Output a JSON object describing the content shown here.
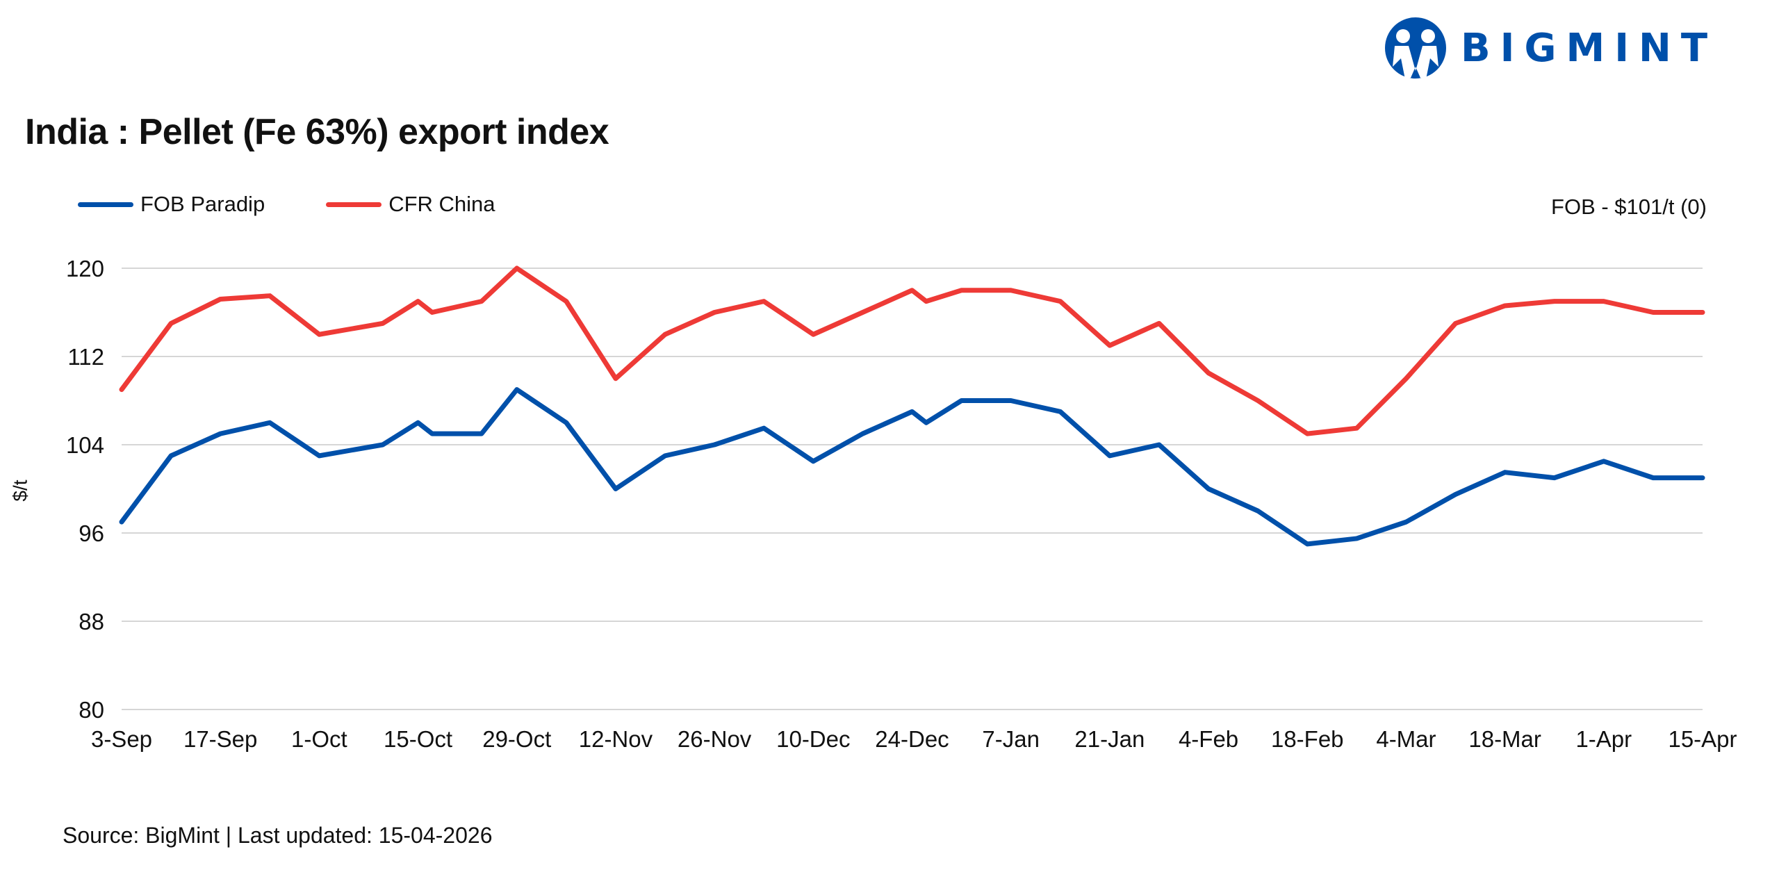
{
  "logo": {
    "text": "BIGMINT",
    "color": "#0050aa"
  },
  "fob_note": "FOB - $101/t (0)",
  "source": "Source: BigMint | Last updated: 15-04-2026",
  "chart_data": {
    "type": "line",
    "title": "India : Pellet (Fe 63%) export index",
    "ylabel": "$/t",
    "xlabel": "",
    "ylim": [
      80,
      120
    ],
    "yticks": [
      80,
      88,
      96,
      104,
      112,
      120
    ],
    "grid": true,
    "legend": "top-left",
    "xticks": [
      {
        "date": "2025-09-03",
        "label": "3-Sep"
      },
      {
        "date": "2025-09-17",
        "label": "17-Sep"
      },
      {
        "date": "2025-10-01",
        "label": "1-Oct"
      },
      {
        "date": "2025-10-15",
        "label": "15-Oct"
      },
      {
        "date": "2025-10-29",
        "label": "29-Oct"
      },
      {
        "date": "2025-11-12",
        "label": "12-Nov"
      },
      {
        "date": "2025-11-26",
        "label": "26-Nov"
      },
      {
        "date": "2025-12-10",
        "label": "10-Dec"
      },
      {
        "date": "2025-12-24",
        "label": "24-Dec"
      },
      {
        "date": "2026-01-07",
        "label": "7-Jan"
      },
      {
        "date": "2026-01-21",
        "label": "21-Jan"
      },
      {
        "date": "2026-02-04",
        "label": "4-Feb"
      },
      {
        "date": "2026-02-18",
        "label": "18-Feb"
      },
      {
        "date": "2026-03-04",
        "label": "4-Mar"
      },
      {
        "date": "2026-03-18",
        "label": "18-Mar"
      },
      {
        "date": "2026-04-01",
        "label": "1-Apr"
      },
      {
        "date": "2026-04-15",
        "label": "15-Apr"
      }
    ],
    "x": [
      "2025-09-03",
      "2025-09-10",
      "2025-09-17",
      "2025-09-24",
      "2025-10-01",
      "2025-10-10",
      "2025-10-15",
      "2025-10-17",
      "2025-10-24",
      "2025-10-29",
      "2025-11-05",
      "2025-11-12",
      "2025-11-19",
      "2025-11-26",
      "2025-12-03",
      "2025-12-10",
      "2025-12-17",
      "2025-12-24",
      "2025-12-26",
      "2025-12-31",
      "2026-01-07",
      "2026-01-14",
      "2026-01-21",
      "2026-01-28",
      "2026-02-04",
      "2026-02-11",
      "2026-02-18",
      "2026-02-25",
      "2026-03-04",
      "2026-03-11",
      "2026-03-18",
      "2026-03-25",
      "2026-04-01",
      "2026-04-08",
      "2026-04-15"
    ],
    "series": [
      {
        "name": "FOB Paradip",
        "color": "#0050aa",
        "values": [
          97,
          103,
          105,
          106,
          103,
          104,
          106,
          105,
          105,
          109,
          106,
          100,
          103,
          104,
          105.5,
          102.5,
          105,
          107,
          106,
          108,
          108,
          107,
          103,
          104,
          100,
          98,
          95,
          95.5,
          97,
          99.5,
          101.5,
          101,
          102.5,
          101,
          101
        ]
      },
      {
        "name": "CFR China",
        "color": "#ee3a36",
        "values": [
          109,
          115,
          117.2,
          117.5,
          114,
          115,
          117,
          116,
          117,
          120,
          117,
          110,
          114,
          116,
          117,
          114,
          116,
          118,
          117,
          118,
          118,
          117,
          113,
          115,
          110.5,
          108,
          105,
          105.5,
          110,
          115,
          116.6,
          117,
          117,
          116,
          116
        ]
      }
    ]
  }
}
